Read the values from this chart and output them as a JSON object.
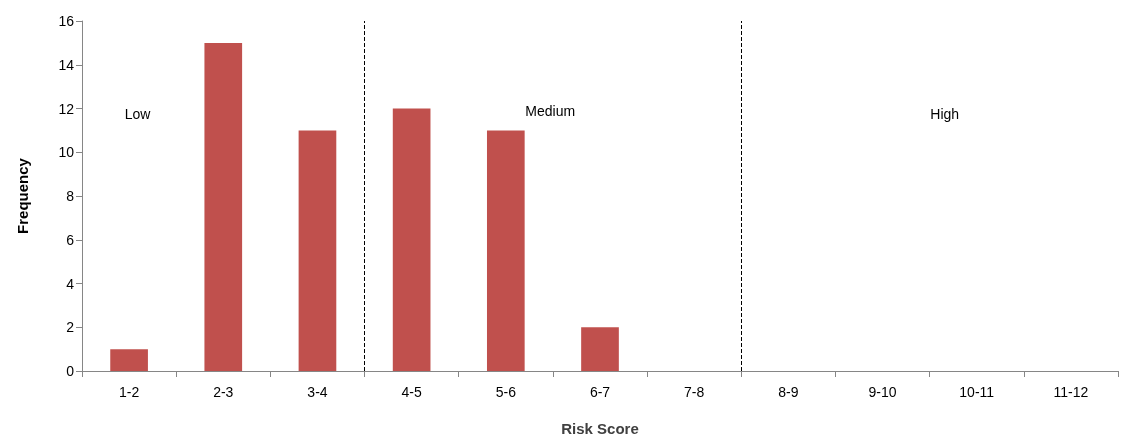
{
  "chart_data": {
    "type": "bar",
    "xlabel": "Risk Score",
    "ylabel": "Frequency",
    "categories": [
      "1-2",
      "2-3",
      "3-4",
      "4-5",
      "5-6",
      "6-7",
      "7-8",
      "8-9",
      "9-10",
      "10-11",
      "11-12"
    ],
    "values": [
      1,
      15,
      11,
      12,
      11,
      2,
      0,
      0,
      0,
      0,
      0
    ],
    "color": "#c0504d",
    "ylim": [
      0,
      16
    ],
    "yticks": [
      0,
      2,
      4,
      6,
      8,
      10,
      12,
      14,
      16
    ],
    "annotations": [
      "Low",
      "Medium",
      "High"
    ]
  }
}
